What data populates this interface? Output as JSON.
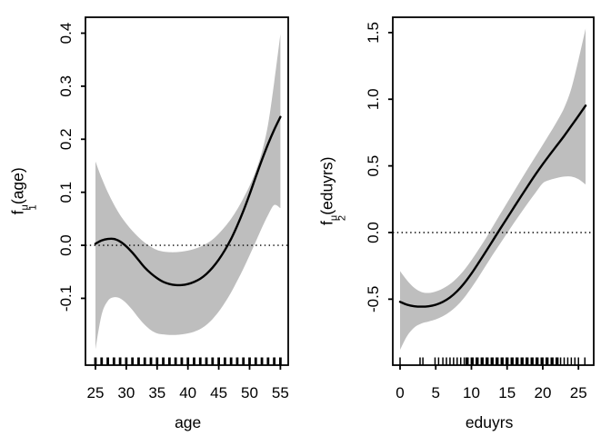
{
  "figure": {
    "background": "#ffffff",
    "band_color": "#bebebe",
    "line_color": "#000000",
    "text_color": "#000000"
  },
  "chart_data": [
    {
      "type": "area",
      "panel": "left",
      "xlabel": "age",
      "ylabel": "f_1^μ(age)",
      "ylabel_parts": {
        "base": "f",
        "sub": "1",
        "sup": "μ",
        "arg": "(age)"
      },
      "x_ticks": [
        25,
        30,
        35,
        40,
        45,
        50,
        55
      ],
      "x_tick_labels": [
        "25",
        "30",
        "35",
        "40",
        "45",
        "50",
        "55"
      ],
      "y_ticks": [
        -0.1,
        0,
        0.1,
        0.2,
        0.3,
        0.4
      ],
      "y_tick_labels": [
        "-0.1",
        "0.0",
        "0.1",
        "0.2",
        "0.3",
        "0.4"
      ],
      "xlim": [
        23.38,
        56.27
      ],
      "ylim": [
        -0.226,
        0.43
      ],
      "zero_line": 0,
      "grid": false,
      "x": [
        25,
        26,
        27,
        28,
        29,
        30,
        31,
        32,
        33,
        34,
        35,
        36,
        37,
        38,
        39,
        40,
        41,
        42,
        43,
        44,
        45,
        46,
        47,
        48,
        49,
        50,
        51,
        52,
        53,
        54,
        55
      ],
      "fit": [
        0.003,
        0.009,
        0.012,
        0.012,
        0.007,
        -0.002,
        -0.014,
        -0.028,
        -0.042,
        -0.053,
        -0.062,
        -0.069,
        -0.073,
        -0.075,
        -0.075,
        -0.073,
        -0.069,
        -0.063,
        -0.054,
        -0.042,
        -0.027,
        -0.009,
        0.012,
        0.037,
        0.065,
        0.096,
        0.129,
        0.161,
        0.191,
        0.218,
        0.242
      ],
      "upper": [
        0.158,
        0.127,
        0.1,
        0.077,
        0.057,
        0.041,
        0.027,
        0.015,
        0.005,
        -0.003,
        -0.009,
        -0.012,
        -0.013,
        -0.013,
        -0.012,
        -0.01,
        -0.007,
        -0.003,
        0.003,
        0.011,
        0.022,
        0.035,
        0.05,
        0.068,
        0.089,
        0.112,
        0.14,
        0.176,
        0.228,
        0.308,
        0.398
      ],
      "lower": [
        -0.196,
        -0.131,
        -0.105,
        -0.098,
        -0.1,
        -0.109,
        -0.122,
        -0.137,
        -0.15,
        -0.16,
        -0.166,
        -0.168,
        -0.169,
        -0.169,
        -0.168,
        -0.166,
        -0.163,
        -0.158,
        -0.15,
        -0.139,
        -0.125,
        -0.108,
        -0.089,
        -0.067,
        -0.044,
        -0.019,
        0.007,
        0.033,
        0.057,
        0.076,
        0.07
      ],
      "rug": [
        25,
        26,
        27,
        28,
        29,
        30,
        31,
        32,
        33,
        34,
        35,
        36,
        37,
        38,
        39,
        40,
        41,
        42,
        43,
        44,
        45,
        46,
        47,
        48,
        49,
        50,
        51,
        52,
        53,
        54,
        55
      ],
      "rug_bold": []
    },
    {
      "type": "area",
      "panel": "right",
      "xlabel": "eduyrs",
      "ylabel": "f_2^μ(eduyrs)",
      "ylabel_parts": {
        "base": "f",
        "sub": "2",
        "sup": "μ",
        "arg": "(eduyrs)"
      },
      "x_ticks": [
        0,
        5,
        10,
        15,
        20,
        25
      ],
      "x_tick_labels": [
        "0",
        "5",
        "10",
        "15",
        "20",
        "25"
      ],
      "y_ticks": [
        -0.5,
        0,
        0.5,
        1.0,
        1.5
      ],
      "y_tick_labels": [
        "-0.5",
        "0.0",
        "0.5",
        "1.0",
        "1.5"
      ],
      "xlim": [
        -1.02,
        27.14
      ],
      "ylim": [
        -0.995,
        1.615
      ],
      "zero_line": 0,
      "grid": false,
      "x": [
        0,
        1,
        2,
        3,
        4,
        5,
        6,
        7,
        8,
        9,
        10,
        11,
        12,
        13,
        14,
        15,
        16,
        17,
        18,
        19,
        20,
        21,
        22,
        23,
        24,
        25,
        26
      ],
      "fit": [
        -0.52,
        -0.542,
        -0.553,
        -0.556,
        -0.553,
        -0.542,
        -0.52,
        -0.487,
        -0.44,
        -0.38,
        -0.308,
        -0.228,
        -0.145,
        -0.06,
        0.025,
        0.108,
        0.192,
        0.275,
        0.357,
        0.437,
        0.513,
        0.585,
        0.655,
        0.725,
        0.8,
        0.875,
        0.952
      ],
      "upper": [
        -0.29,
        -0.36,
        -0.415,
        -0.446,
        -0.453,
        -0.442,
        -0.42,
        -0.387,
        -0.34,
        -0.28,
        -0.208,
        -0.128,
        -0.045,
        0.045,
        0.135,
        0.223,
        0.312,
        0.4,
        0.487,
        0.572,
        0.658,
        0.745,
        0.835,
        0.935,
        1.08,
        1.295,
        1.53
      ],
      "lower": [
        -0.88,
        -0.775,
        -0.712,
        -0.682,
        -0.668,
        -0.652,
        -0.628,
        -0.594,
        -0.548,
        -0.488,
        -0.415,
        -0.335,
        -0.25,
        -0.165,
        -0.085,
        -0.005,
        0.075,
        0.152,
        0.227,
        0.3,
        0.37,
        0.395,
        0.41,
        0.42,
        0.42,
        0.4,
        0.36
      ],
      "rug": [
        0,
        2.8,
        3.2,
        4.9,
        5.4,
        6.0,
        6.5,
        7.0,
        7.5,
        8.0,
        8.5,
        9.0,
        22.5,
        23.0,
        23.5,
        24.0,
        24.5,
        25.0,
        25.9
      ],
      "rug_bold": [
        9.4,
        10.1,
        10.8,
        11.5,
        12.2,
        12.9,
        13.6,
        14.3,
        15.0,
        15.7,
        16.4,
        17.1,
        17.8,
        18.5,
        19.2,
        19.9,
        20.6,
        21.3,
        22.0
      ]
    }
  ]
}
